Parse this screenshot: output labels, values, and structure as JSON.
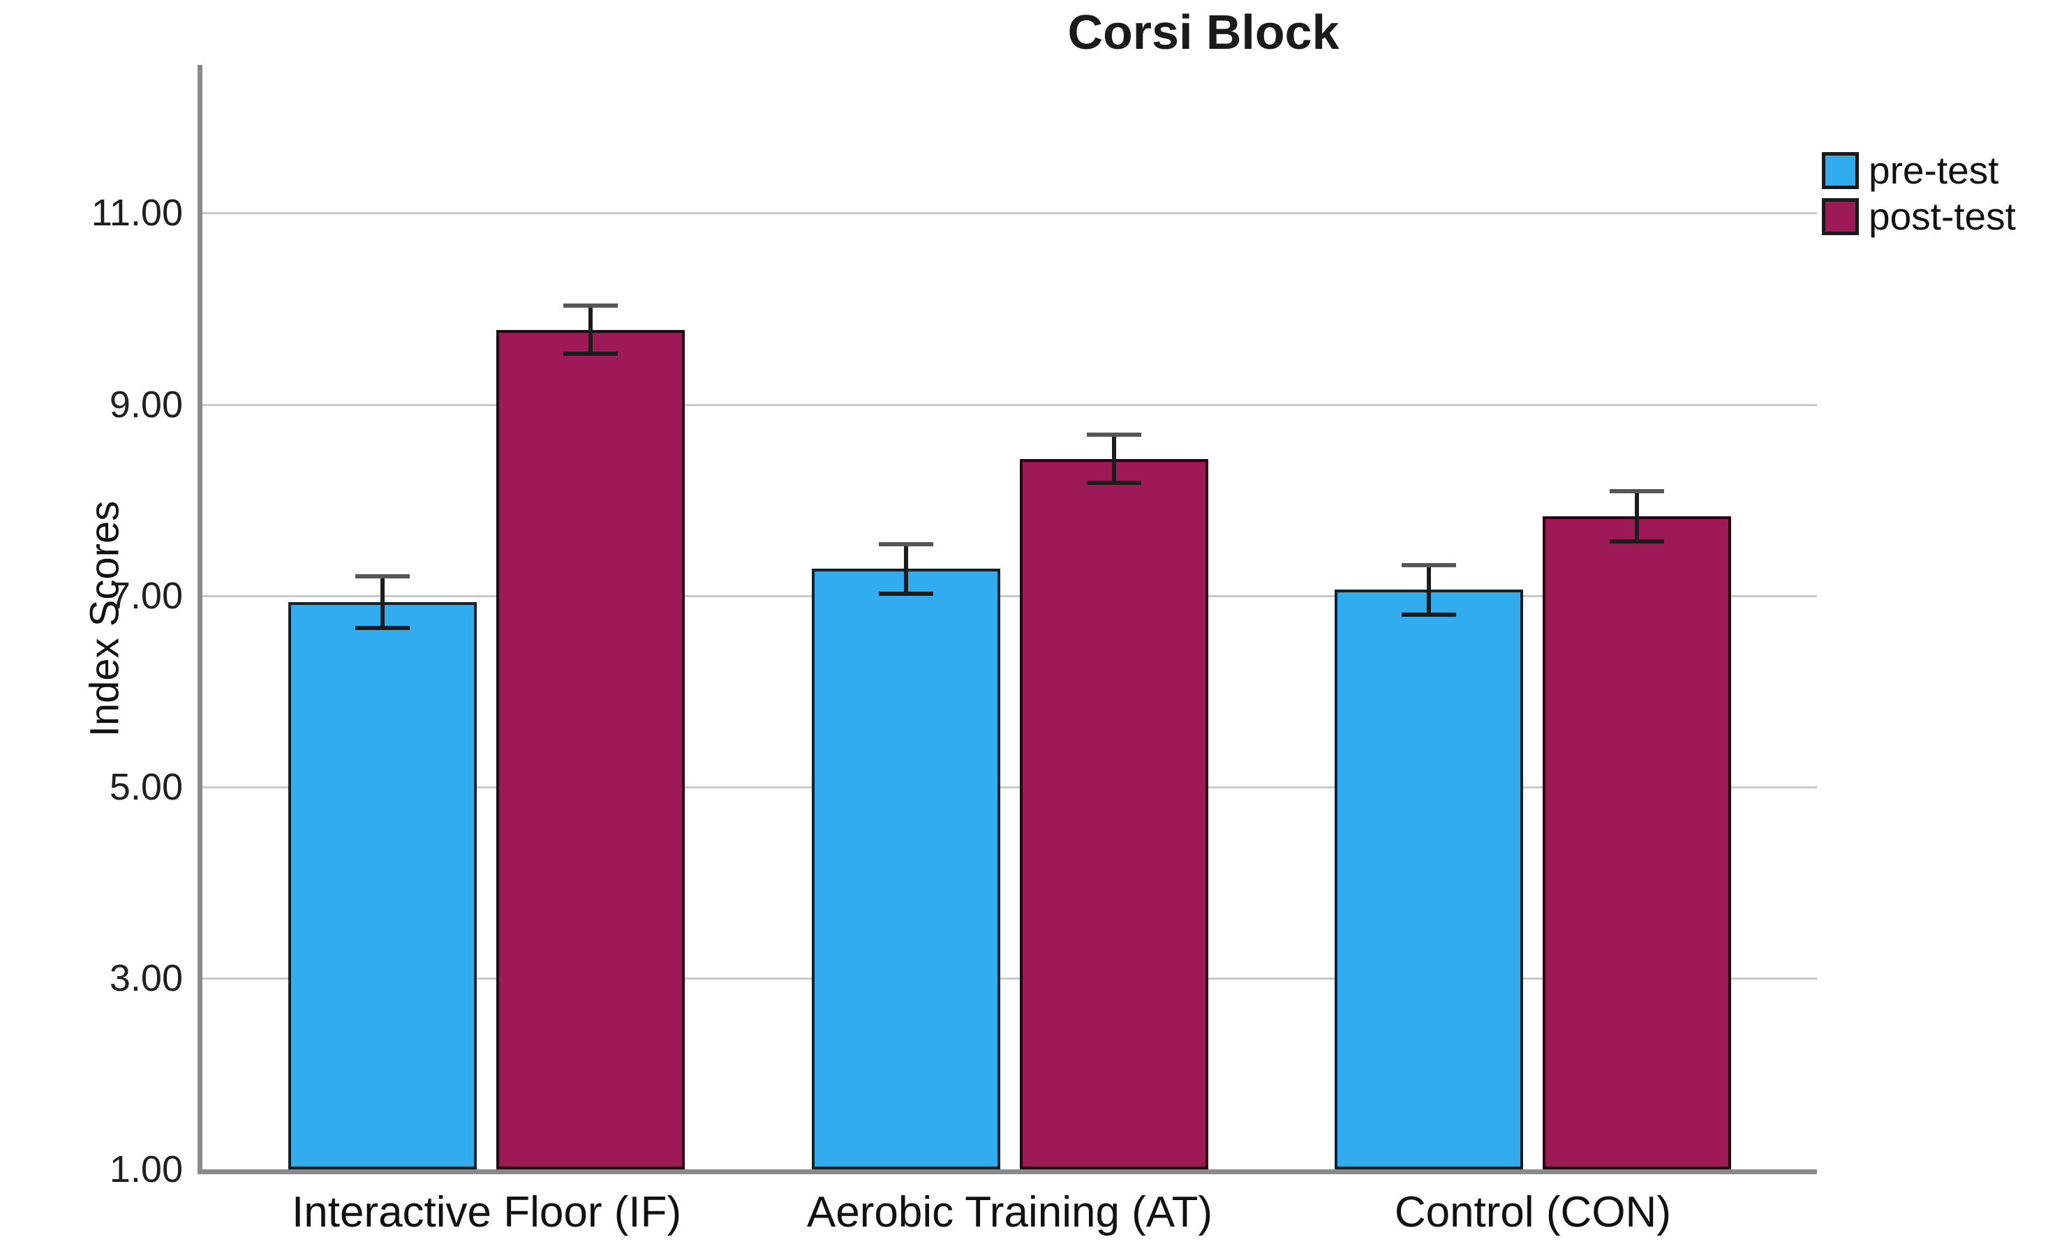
{
  "title": "Corsi Block",
  "chart_data": {
    "type": "bar",
    "title": "Corsi Block",
    "categories": [
      "Interactive Floor (IF)",
      "Aerobic Training (AT)",
      "Control (CON)"
    ],
    "series": [
      {
        "name": "pre-test",
        "color": "#31ACEF",
        "border": "#10222e",
        "values": [
          6.93,
          7.28,
          7.06
        ],
        "errors": [
          0.27,
          0.26,
          0.26
        ]
      },
      {
        "name": "post-test",
        "color": "#9D1A57",
        "border": "#26040f",
        "values": [
          9.78,
          8.43,
          7.83
        ],
        "errors": [
          0.25,
          0.25,
          0.26
        ]
      }
    ],
    "xlabel": "",
    "ylabel": "Index Scores",
    "ylim": [
      1,
      12.55
    ],
    "yticks": [
      1,
      3,
      5,
      7,
      9,
      11
    ],
    "ytick_labels": [
      "1.00",
      "3.00",
      "5.00",
      "7.00",
      "9.00",
      "11.00"
    ],
    "grid": true,
    "gridline_values": [
      3,
      5,
      7,
      9,
      11
    ],
    "error_bars": true,
    "legend_position": "top-right"
  },
  "legend": {
    "items": [
      {
        "label": "pre-test",
        "color": "#31ACEF"
      },
      {
        "label": "post-test",
        "color": "#9D1A57"
      }
    ]
  },
  "colors": {
    "background": "#ffffff",
    "gridline": "#c9c9c9",
    "axis": "#8a8a8a",
    "text": "#111111",
    "error_bar": "#1c1c1c"
  }
}
